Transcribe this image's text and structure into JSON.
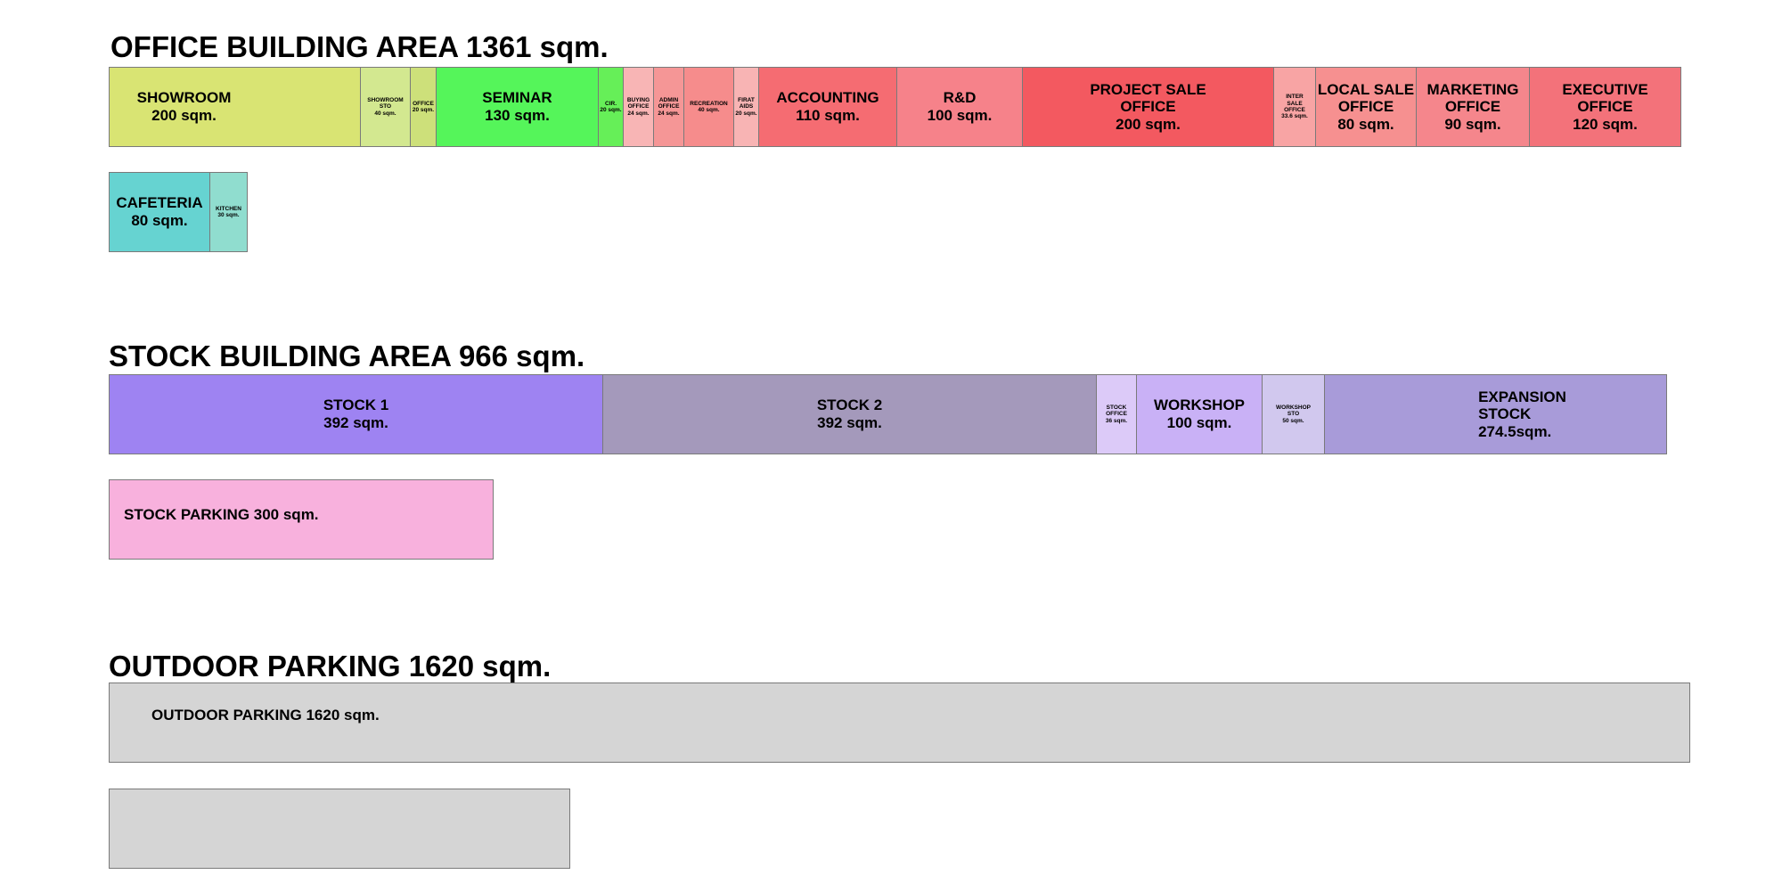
{
  "sections": {
    "office": {
      "title": "OFFICE BUILDING AREA 1361 sqm.",
      "rows": [
        [
          {
            "label": "SHOWROOM\n200 sqm.",
            "color": "#d9e473"
          },
          {
            "label": "SHOWROOM\nSTO\n40 sqm.",
            "color": "#d3e890"
          },
          {
            "label": "OFFICE\n20 sqm.",
            "color": "#cde07a"
          },
          {
            "label": "SEMINAR\n130 sqm.",
            "color": "#55f55a"
          },
          {
            "label": "CIR.\n20 sqm.",
            "color": "#66ef58"
          },
          {
            "label": "BUYING\nOFFICE\n24 sqm.",
            "color": "#f8b5b5"
          },
          {
            "label": "ADMIN\nOFFICE\n24 sqm.",
            "color": "#f59696"
          },
          {
            "label": "RECREATION\n40 sqm.",
            "color": "#f68c8c"
          },
          {
            "label": "FIRAT\nAIDS\n20 sqm.",
            "color": "#f8b4b4"
          },
          {
            "label": "ACCOUNTING\n110 sqm.",
            "color": "#f56c72"
          },
          {
            "label": "R&D\n100 sqm.",
            "color": "#f6828a"
          },
          {
            "label": "PROJECT SALE\nOFFICE\n200 sqm.",
            "color": "#f35960"
          },
          {
            "label": "INTER\nSALE\nOFFICE\n33.6 sqm.",
            "color": "#f8a4a4"
          },
          {
            "label": "LOCAL SALE\nOFFICE\n80 sqm.",
            "color": "#f69090"
          },
          {
            "label": "MARKETING\nOFFICE\n90 sqm.",
            "color": "#f5868c"
          },
          {
            "label": "EXECUTIVE\nOFFICE\n120 sqm.",
            "color": "#f3727a"
          }
        ],
        [
          {
            "label": "CAFETERIA\n80 sqm.",
            "color": "#66d3d1"
          },
          {
            "label": "KITCHEN\n30 sqm.",
            "color": "#90ddcf"
          }
        ]
      ]
    },
    "stock": {
      "title": "STOCK BUILDING AREA 966 sqm.",
      "rows": [
        [
          {
            "label": "STOCK 1\n392 sqm.",
            "color": "#9e83f2"
          },
          {
            "label": "STOCK 2\n392 sqm.",
            "color": "#a499bb"
          },
          {
            "label": "STOCK\nOFFICE\n36 sqm.",
            "color": "#dccaf8"
          },
          {
            "label": "WORKSHOP\n100 sqm.",
            "color": "#c9b1f6"
          },
          {
            "label": "WORKSHOP\nSTO\n50 sqm.",
            "color": "#d1c8ee"
          },
          {
            "label": "EXPANSION\nSTOCK\n274.5sqm.",
            "color": "#a89bd9"
          }
        ],
        [
          {
            "label": "STOCK  PARKING 300 sqm.",
            "color": "#f8b1dd"
          }
        ]
      ]
    },
    "parking": {
      "title": "OUTDOOR PARKING 1620 sqm.",
      "rows": [
        [
          {
            "label": "OUTDOOR PARKING 1620 sqm.",
            "color": "#d5d5d5"
          }
        ],
        [
          {
            "label": "",
            "color": "#d5d5d5"
          }
        ]
      ]
    }
  }
}
